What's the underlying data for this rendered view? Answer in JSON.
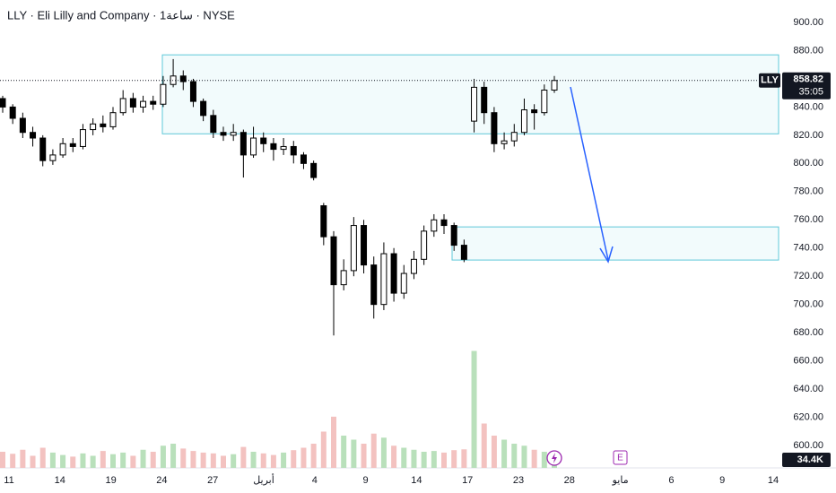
{
  "chart_data": {
    "type": "candlestick",
    "title": "LLY · Eli Lilly and Company · 1ساعة · NYSE",
    "symbol": "LLY",
    "last_price": 858.82,
    "countdown": "35:05",
    "event_label": "E",
    "last_volume": {
      "value": 34.4,
      "label": "34.4K"
    },
    "ylim": [
      600,
      900
    ],
    "yticks": [
      {
        "value": 600,
        "label": "600.00"
      },
      {
        "value": 620,
        "label": "620.00"
      },
      {
        "value": 640,
        "label": "640.00"
      },
      {
        "value": 660,
        "label": "660.00"
      },
      {
        "value": 680,
        "label": "680.00"
      },
      {
        "value": 700,
        "label": "700.00"
      },
      {
        "value": 720,
        "label": "720.00"
      },
      {
        "value": 740,
        "label": "740.00"
      },
      {
        "value": 760,
        "label": "760.00"
      },
      {
        "value": 780,
        "label": "780.00"
      },
      {
        "value": 800,
        "label": "800.00"
      },
      {
        "value": 820,
        "label": "820.00"
      },
      {
        "value": 840,
        "label": "840.00"
      },
      {
        "value": 860,
        "label": "860.00"
      },
      {
        "value": 880,
        "label": "880.00"
      },
      {
        "value": 900,
        "label": "900.00"
      }
    ],
    "xticks": [
      "11",
      "14",
      "19",
      "24",
      "27",
      "أبريل",
      "4",
      "9",
      "14",
      "17",
      "23",
      "28",
      "مايو",
      "6",
      "9",
      "14"
    ],
    "grid": false,
    "up_color": "#ffffff",
    "down_color": "#000000",
    "wick_color": "#000000",
    "volume_up_color": "#b9e0bb",
    "volume_down_color": "#f3c2c0",
    "volume_ylim": [
      0,
      400
    ],
    "zone_color": "#5fc8d8",
    "zones": [
      {
        "top": 877,
        "bottom": 821
      },
      {
        "top": 755,
        "bottom": 731.5
      }
    ],
    "ohlc": [
      [
        846,
        848,
        836,
        840
      ],
      [
        840,
        842,
        828,
        832
      ],
      [
        832,
        836,
        818,
        822
      ],
      [
        822,
        826,
        812,
        818
      ],
      [
        818,
        820,
        798,
        802
      ],
      [
        802,
        810,
        799,
        806
      ],
      [
        806,
        818,
        804,
        814
      ],
      [
        814,
        818,
        808,
        812
      ],
      [
        812,
        828,
        810,
        824
      ],
      [
        824,
        832,
        820,
        828
      ],
      [
        828,
        834,
        822,
        826
      ],
      [
        826,
        840,
        824,
        836
      ],
      [
        836,
        852,
        834,
        846
      ],
      [
        846,
        850,
        836,
        840
      ],
      [
        840,
        848,
        836,
        844
      ],
      [
        844,
        848,
        838,
        842
      ],
      [
        842,
        862,
        840,
        856
      ],
      [
        856,
        874,
        854,
        862
      ],
      [
        862,
        866,
        852,
        858
      ],
      [
        858,
        860,
        840,
        844
      ],
      [
        844,
        846,
        830,
        834
      ],
      [
        834,
        838,
        818,
        822
      ],
      [
        822,
        826,
        816,
        820
      ],
      [
        820,
        828,
        816,
        822
      ],
      [
        822,
        824,
        790,
        806
      ],
      [
        806,
        826,
        804,
        818
      ],
      [
        818,
        822,
        808,
        814
      ],
      [
        814,
        818,
        802,
        810
      ],
      [
        810,
        818,
        806,
        812
      ],
      [
        812,
        816,
        800,
        806
      ],
      [
        806,
        808,
        796,
        800
      ],
      [
        800,
        802,
        788,
        790
      ],
      [
        770,
        772,
        742,
        748
      ],
      [
        748,
        752,
        678,
        714
      ],
      [
        714,
        732,
        710,
        724
      ],
      [
        724,
        762,
        720,
        756
      ],
      [
        756,
        760,
        722,
        728
      ],
      [
        728,
        734,
        690,
        700
      ],
      [
        700,
        744,
        696,
        736
      ],
      [
        736,
        740,
        702,
        708
      ],
      [
        708,
        728,
        704,
        722
      ],
      [
        722,
        738,
        718,
        732
      ],
      [
        732,
        756,
        728,
        752
      ],
      [
        752,
        764,
        748,
        760
      ],
      [
        760,
        764,
        750,
        756
      ],
      [
        756,
        758,
        738,
        742
      ],
      [
        742,
        746,
        730,
        732
      ],
      [
        830,
        860,
        822,
        854
      ],
      [
        854,
        858,
        828,
        836
      ],
      [
        836,
        840,
        808,
        814
      ],
      [
        814,
        822,
        810,
        816
      ],
      [
        816,
        828,
        812,
        822
      ],
      [
        822,
        846,
        820,
        838
      ],
      [
        838,
        842,
        824,
        836
      ],
      [
        836,
        856,
        834,
        852
      ],
      [
        852,
        862,
        850,
        858.82
      ]
    ],
    "volume": [
      40,
      35,
      45,
      30,
      50,
      38,
      32,
      28,
      36,
      30,
      42,
      34,
      38,
      30,
      45,
      40,
      55,
      60,
      48,
      42,
      38,
      36,
      30,
      34,
      52,
      40,
      36,
      32,
      38,
      44,
      50,
      60,
      90,
      127,
      80,
      70,
      60,
      85,
      75,
      55,
      50,
      45,
      40,
      42,
      38,
      44,
      46,
      290,
      110,
      80,
      70,
      60,
      55,
      45,
      40,
      34.4
    ]
  }
}
